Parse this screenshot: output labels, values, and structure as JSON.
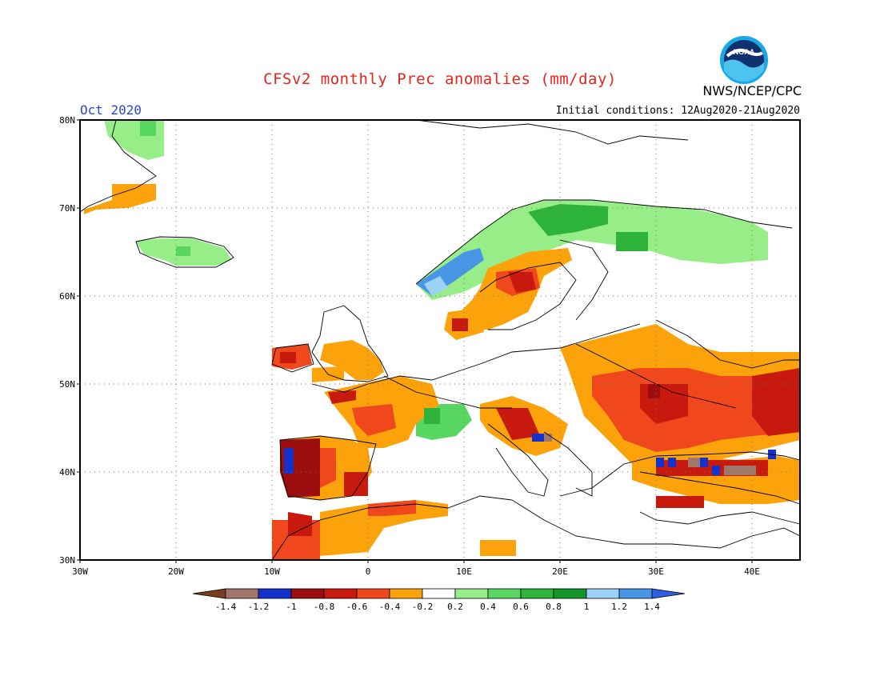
{
  "header": {
    "title": "CFSv2 monthly Prec anomalies (mm/day)",
    "month": "Oct 2020",
    "initial_conditions": "Initial conditions: 12Aug2020-21Aug2020",
    "org": "NWS/NCEP/CPC",
    "logo_text": "NOAA"
  },
  "map": {
    "projection": "equirectangular",
    "lon_range": [
      -30,
      45
    ],
    "lat_range": [
      30,
      80
    ],
    "lat_ticks": [
      "80N",
      "70N",
      "60N",
      "50N",
      "40N",
      "30N"
    ],
    "lon_ticks": [
      "30W",
      "20W",
      "10W",
      "0",
      "10E",
      "20E",
      "30E",
      "40E"
    ],
    "grid": "dotted"
  },
  "legend": {
    "labels": [
      "-1.4",
      "-1.2",
      "-1",
      "-0.8",
      "-0.6",
      "-0.4",
      "-0.2",
      "0.2",
      "0.4",
      "0.6",
      "0.8",
      "1",
      "1.2",
      "1.4"
    ],
    "colors": [
      "#7b3d1e",
      "#a0786b",
      "#1431cc",
      "#9c0d0d",
      "#c8190f",
      "#f0471d",
      "#fca20a",
      "#ffffff",
      "#97ee88",
      "#58d760",
      "#2fb43b",
      "#15962d",
      "#9cd2f5",
      "#4a96e6",
      "#2b5ee0"
    ]
  }
}
